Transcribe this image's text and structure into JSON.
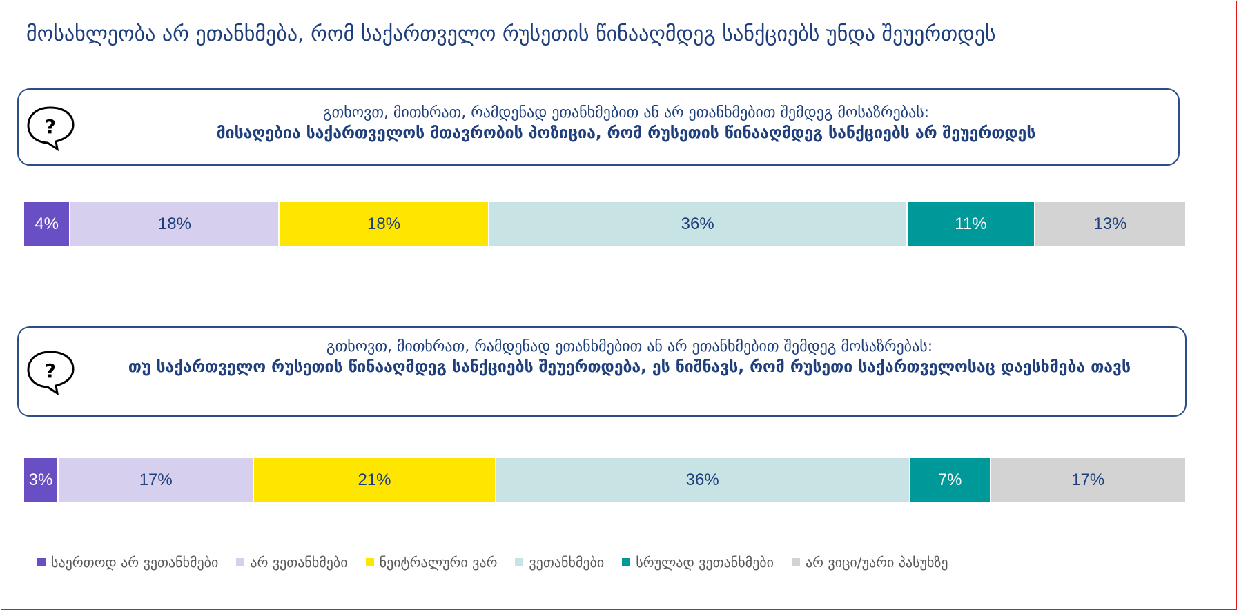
{
  "page": {
    "title": "მოსახლეობა არ ეთანხმება, რომ საქართველო რუსეთის წინააღმდეგ სანქციებს უნდა შეუერთდეს"
  },
  "questions": [
    {
      "prompt": "გთხოვთ, მითხრათ, რამდენად ეთანხმებით ან არ ეთანხმებით შემდეგ მოსაზრებას:",
      "statement": "მისაღებია საქართველოს მთავრობის პოზიცია, რომ რუსეთის წინააღმდეგ სანქციებს არ შეუერთდეს",
      "icon": "question-speech-bubble-icon"
    },
    {
      "prompt": "გთხოვთ, მითხრათ, რამდენად ეთანხმებით ან არ ეთანხმებით შემდეგ მოსაზრებას:",
      "statement": "თუ საქართველო რუსეთის წინააღმდეგ სანქციებს შეუერთდება, ეს ნიშნავს, რომ რუსეთი საქართველოსაც დაესხმება თავს",
      "icon": "question-speech-bubble-icon"
    }
  ],
  "chart_data": {
    "type": "bar",
    "orientation": "horizontal",
    "stacked": true,
    "normalized": true,
    "legend_position": "bottom",
    "categories": [
      "საერთოდ არ ვეთანხმები",
      "არ ვეთანხმები",
      "ნეიტრალური ვარ",
      "ვეთანხმები",
      "სრულად ვეთანხმები",
      "არ ვიცი/უარი პასუხზე"
    ],
    "colors": [
      "#6a4ec4",
      "#d6d0ee",
      "#ffe600",
      "#c8e3e3",
      "#009999",
      "#d3d3d3"
    ],
    "text_colors": [
      "#ffffff",
      "#1e3f7c",
      "#1e3f7c",
      "#1e3f7c",
      "#ffffff",
      "#1e3f7c"
    ],
    "series": [
      {
        "values": [
          4,
          18,
          18,
          36,
          11,
          13
        ],
        "labels": [
          "4%",
          "18%",
          "18%",
          "36%",
          "11%",
          "13%"
        ]
      },
      {
        "values": [
          3,
          17,
          21,
          36,
          7,
          17
        ],
        "labels": [
          "3%",
          "17%",
          "21%",
          "36%",
          "7%",
          "17%"
        ]
      }
    ]
  }
}
